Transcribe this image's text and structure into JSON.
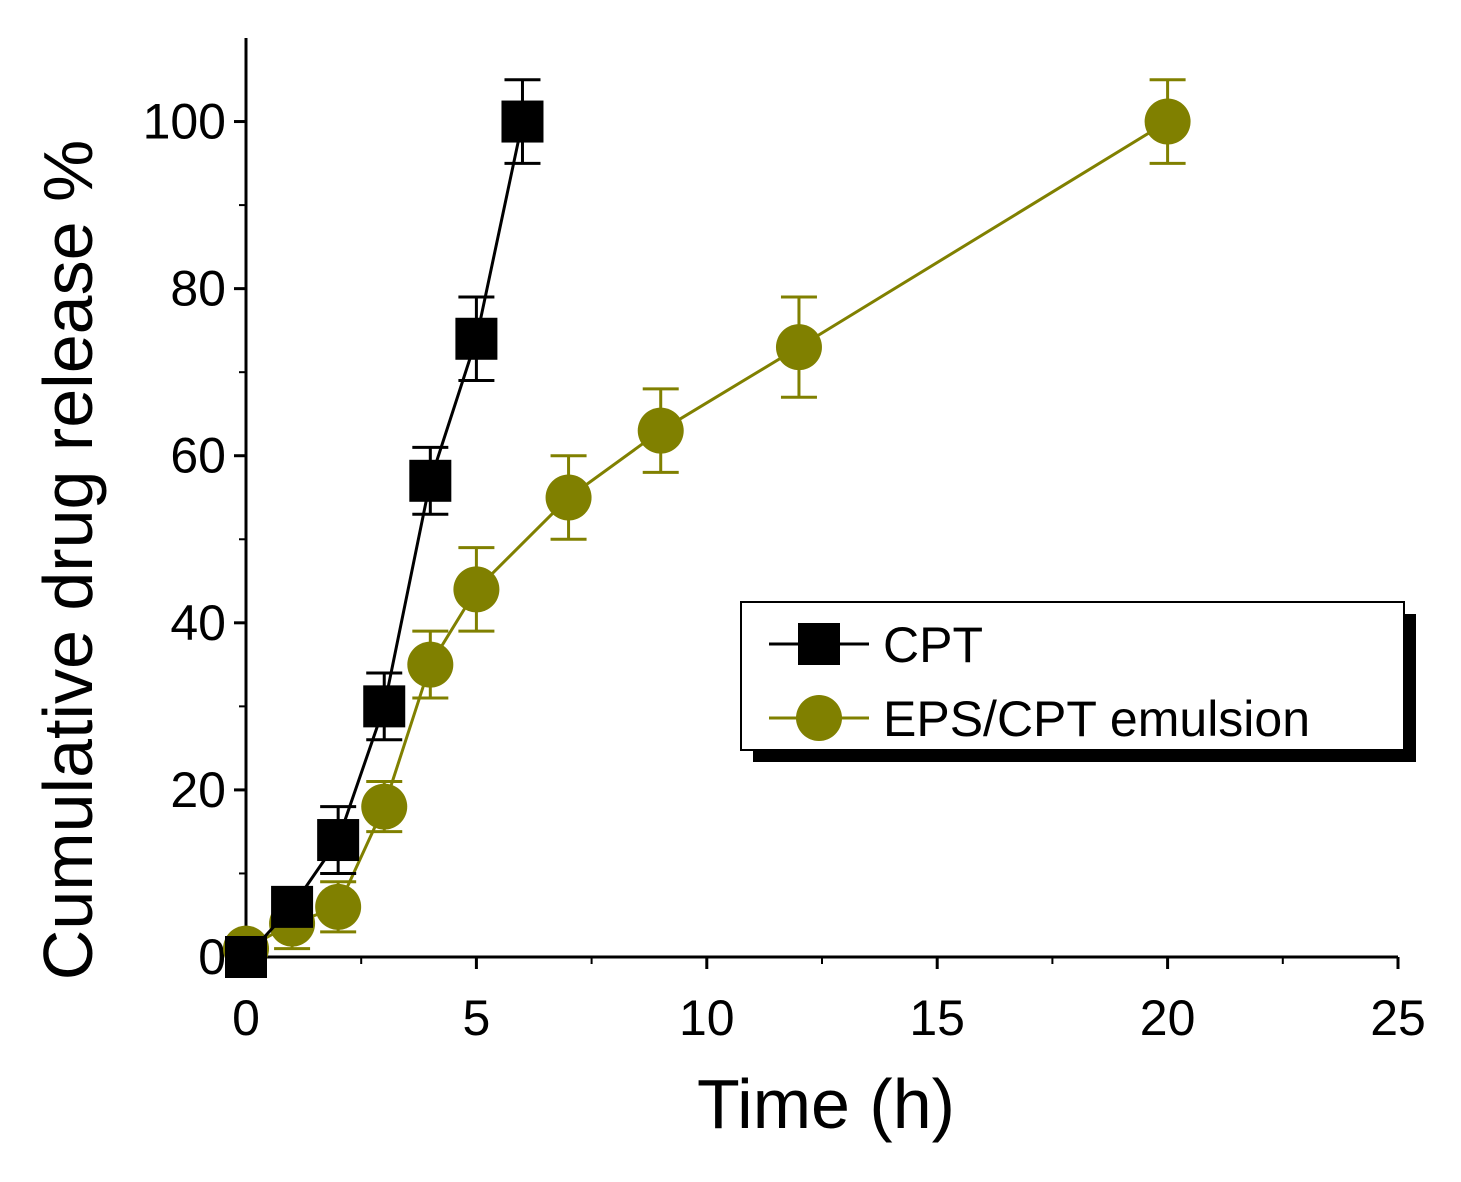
{
  "chart_data": {
    "type": "line",
    "title": "",
    "xlabel": "Time (h)",
    "ylabel": "Cumulative drug release %",
    "xlim": [
      0,
      25
    ],
    "ylim": [
      0,
      110
    ],
    "xticks": [
      0,
      5,
      10,
      15,
      20,
      25
    ],
    "yticks": [
      0,
      20,
      40,
      60,
      80,
      100
    ],
    "grid": false,
    "legend_position": "center-right",
    "series": [
      {
        "name": "CPT",
        "marker": "square",
        "color": "#000000",
        "x": [
          0,
          1,
          2,
          3,
          4,
          5,
          6
        ],
        "y": [
          0,
          6,
          14,
          30,
          57,
          74,
          100
        ],
        "err": [
          1,
          2,
          4,
          4,
          4,
          5,
          5
        ]
      },
      {
        "name": "EPS/CPT emulsion",
        "marker": "circle",
        "color": "#808000",
        "x": [
          0,
          1,
          2,
          3,
          4,
          5,
          7,
          9,
          12,
          20
        ],
        "y": [
          1,
          4,
          6,
          18,
          35,
          44,
          55,
          63,
          73,
          100
        ],
        "err": [
          1,
          3,
          3,
          3,
          4,
          5,
          5,
          5,
          6,
          5
        ]
      }
    ]
  }
}
